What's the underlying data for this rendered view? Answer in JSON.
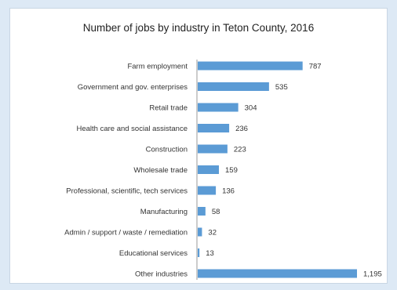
{
  "chart_data": {
    "type": "bar",
    "orientation": "horizontal",
    "title": "Number of jobs by industry in Teton County, 2016",
    "categories": [
      "Farm employment",
      "Government and gov. enterprises",
      "Retail trade",
      "Health care and social assistance",
      "Construction",
      "Wholesale trade",
      "Professional, scientific, tech services",
      "Manufacturing",
      "Admin / support / waste / remediation",
      "Educational services",
      "Other industries"
    ],
    "values": [
      787,
      535,
      304,
      236,
      223,
      159,
      136,
      58,
      32,
      13,
      1195
    ],
    "value_labels": [
      "787",
      "535",
      "304",
      "236",
      "223",
      "159",
      "136",
      "58",
      "32",
      "13",
      "1,195"
    ],
    "xlim": [
      0,
      1195
    ],
    "bar_color": "#5b9bd5",
    "grid": false,
    "legend": "none"
  }
}
